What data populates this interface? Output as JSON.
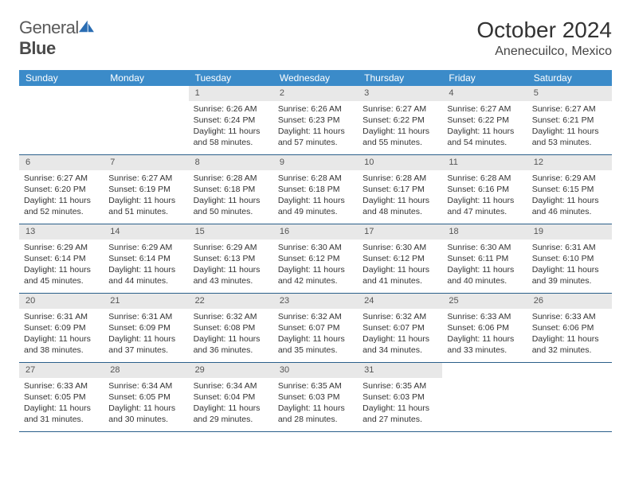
{
  "brand": {
    "word1": "General",
    "word2": "Blue"
  },
  "title": "October 2024",
  "location": "Anenecuilco, Mexico",
  "colors": {
    "header_bg": "#3b8bc9",
    "header_text": "#ffffff",
    "daynum_bg": "#e8e8e8",
    "week_border": "#2a5f8a",
    "logo_shape": "#2a6db3"
  },
  "daysOfWeek": [
    "Sunday",
    "Monday",
    "Tuesday",
    "Wednesday",
    "Thursday",
    "Friday",
    "Saturday"
  ],
  "layout": {
    "cols": 7,
    "rows": 5,
    "first_day_col": 2,
    "days_in_month": 31
  },
  "cells": [
    {
      "n": 1,
      "sr": "6:26 AM",
      "ss": "6:24 PM",
      "dl": "11 hours and 58 minutes."
    },
    {
      "n": 2,
      "sr": "6:26 AM",
      "ss": "6:23 PM",
      "dl": "11 hours and 57 minutes."
    },
    {
      "n": 3,
      "sr": "6:27 AM",
      "ss": "6:22 PM",
      "dl": "11 hours and 55 minutes."
    },
    {
      "n": 4,
      "sr": "6:27 AM",
      "ss": "6:22 PM",
      "dl": "11 hours and 54 minutes."
    },
    {
      "n": 5,
      "sr": "6:27 AM",
      "ss": "6:21 PM",
      "dl": "11 hours and 53 minutes."
    },
    {
      "n": 6,
      "sr": "6:27 AM",
      "ss": "6:20 PM",
      "dl": "11 hours and 52 minutes."
    },
    {
      "n": 7,
      "sr": "6:27 AM",
      "ss": "6:19 PM",
      "dl": "11 hours and 51 minutes."
    },
    {
      "n": 8,
      "sr": "6:28 AM",
      "ss": "6:18 PM",
      "dl": "11 hours and 50 minutes."
    },
    {
      "n": 9,
      "sr": "6:28 AM",
      "ss": "6:18 PM",
      "dl": "11 hours and 49 minutes."
    },
    {
      "n": 10,
      "sr": "6:28 AM",
      "ss": "6:17 PM",
      "dl": "11 hours and 48 minutes."
    },
    {
      "n": 11,
      "sr": "6:28 AM",
      "ss": "6:16 PM",
      "dl": "11 hours and 47 minutes."
    },
    {
      "n": 12,
      "sr": "6:29 AM",
      "ss": "6:15 PM",
      "dl": "11 hours and 46 minutes."
    },
    {
      "n": 13,
      "sr": "6:29 AM",
      "ss": "6:14 PM",
      "dl": "11 hours and 45 minutes."
    },
    {
      "n": 14,
      "sr": "6:29 AM",
      "ss": "6:14 PM",
      "dl": "11 hours and 44 minutes."
    },
    {
      "n": 15,
      "sr": "6:29 AM",
      "ss": "6:13 PM",
      "dl": "11 hours and 43 minutes."
    },
    {
      "n": 16,
      "sr": "6:30 AM",
      "ss": "6:12 PM",
      "dl": "11 hours and 42 minutes."
    },
    {
      "n": 17,
      "sr": "6:30 AM",
      "ss": "6:12 PM",
      "dl": "11 hours and 41 minutes."
    },
    {
      "n": 18,
      "sr": "6:30 AM",
      "ss": "6:11 PM",
      "dl": "11 hours and 40 minutes."
    },
    {
      "n": 19,
      "sr": "6:31 AM",
      "ss": "6:10 PM",
      "dl": "11 hours and 39 minutes."
    },
    {
      "n": 20,
      "sr": "6:31 AM",
      "ss": "6:09 PM",
      "dl": "11 hours and 38 minutes."
    },
    {
      "n": 21,
      "sr": "6:31 AM",
      "ss": "6:09 PM",
      "dl": "11 hours and 37 minutes."
    },
    {
      "n": 22,
      "sr": "6:32 AM",
      "ss": "6:08 PM",
      "dl": "11 hours and 36 minutes."
    },
    {
      "n": 23,
      "sr": "6:32 AM",
      "ss": "6:07 PM",
      "dl": "11 hours and 35 minutes."
    },
    {
      "n": 24,
      "sr": "6:32 AM",
      "ss": "6:07 PM",
      "dl": "11 hours and 34 minutes."
    },
    {
      "n": 25,
      "sr": "6:33 AM",
      "ss": "6:06 PM",
      "dl": "11 hours and 33 minutes."
    },
    {
      "n": 26,
      "sr": "6:33 AM",
      "ss": "6:06 PM",
      "dl": "11 hours and 32 minutes."
    },
    {
      "n": 27,
      "sr": "6:33 AM",
      "ss": "6:05 PM",
      "dl": "11 hours and 31 minutes."
    },
    {
      "n": 28,
      "sr": "6:34 AM",
      "ss": "6:05 PM",
      "dl": "11 hours and 30 minutes."
    },
    {
      "n": 29,
      "sr": "6:34 AM",
      "ss": "6:04 PM",
      "dl": "11 hours and 29 minutes."
    },
    {
      "n": 30,
      "sr": "6:35 AM",
      "ss": "6:03 PM",
      "dl": "11 hours and 28 minutes."
    },
    {
      "n": 31,
      "sr": "6:35 AM",
      "ss": "6:03 PM",
      "dl": "11 hours and 27 minutes."
    }
  ],
  "labels": {
    "sunrise": "Sunrise:",
    "sunset": "Sunset:",
    "daylight": "Daylight:"
  }
}
